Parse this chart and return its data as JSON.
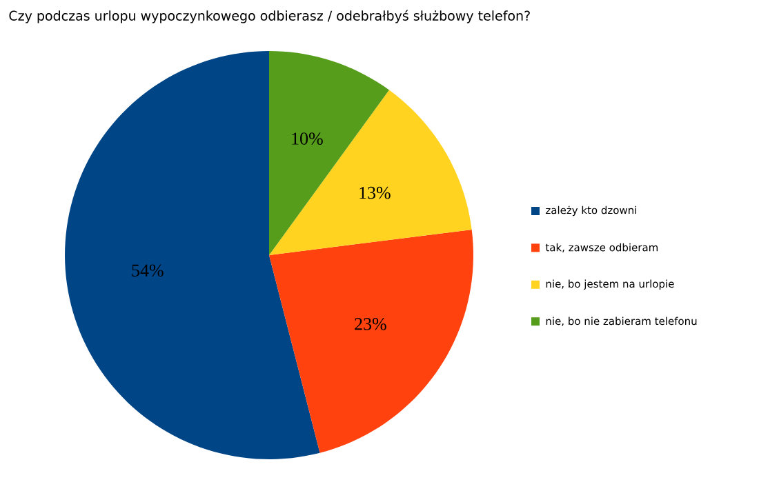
{
  "chart_data": {
    "type": "pie",
    "title": "Czy podczas urlopu wypoczynkowego odbierasz / odebrałbyś służbowy telefon?",
    "categories": [
      "zależy kto dzowni",
      "tak, zawsze odbieram",
      "nie, bo jestem na urlopie",
      "nie, bo nie zabieram telefonu"
    ],
    "values": [
      54,
      23,
      13,
      10
    ],
    "colors": [
      "#004586",
      "#ff420e",
      "#ffd320",
      "#579d1c"
    ],
    "value_labels": [
      "54%",
      "23%",
      "13%",
      "10%"
    ],
    "legend": "right"
  }
}
